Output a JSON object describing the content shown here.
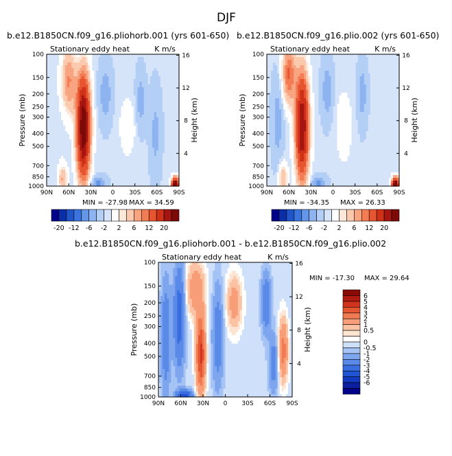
{
  "figure_title": "DJF",
  "colors": {
    "panel1_scale": [
      "#00008b",
      "#0a2ea8",
      "#1f55c8",
      "#3a74dc",
      "#6496e8",
      "#8db3f0",
      "#b4cff6",
      "#d6e4fa",
      "#ffffff",
      "#fde7d8",
      "#fbc9ae",
      "#f8a480",
      "#f27d55",
      "#e6552f",
      "#cf3018",
      "#a51512",
      "#7b0a08"
    ],
    "panel3_scale": [
      "#00008b",
      "#0b1fa0",
      "#1339c0",
      "#1f55d4",
      "#3a6ee0",
      "#5a8ae8",
      "#7ea6ee",
      "#a5c3f4",
      "#cfe0fa",
      "#ffffff",
      "#fde5d2",
      "#fbc3a4",
      "#f79e78",
      "#f07a52",
      "#e45632",
      "#d0341c",
      "#b01a10",
      "#8a0a06"
    ]
  },
  "chart_data": [
    {
      "type": "contour",
      "title": "b.e12.B1850CN.f09_g16.pliohorb.001 (yrs 601-650)",
      "subtitle_left": "Stationary eddy heat",
      "subtitle_right": "K m/s",
      "xlabel": "",
      "ylabel": "Pressure (mb)",
      "ylabel_right": "Height (km)",
      "x_ticks": [
        "90N",
        "60N",
        "30N",
        "0",
        "30S",
        "60S",
        "90S"
      ],
      "y_ticks": [
        "100",
        "150",
        "200",
        "250",
        "300",
        "400",
        "500",
        "700",
        "850",
        "1000"
      ],
      "y_right_ticks": [
        "16",
        "12",
        "8",
        "4"
      ],
      "min_label": "MIN = -27.98",
      "max_label": "MAX = 34.59",
      "colorbar_labels": [
        "-20",
        "-12",
        "-6",
        "-2",
        "2",
        "6",
        "12",
        "20"
      ]
    },
    {
      "type": "contour",
      "title": "b.e12.B1850CN.f09_g16.plio.002 (yrs 601-650)",
      "subtitle_left": "Stationary eddy heat",
      "subtitle_right": "K m/s",
      "xlabel": "",
      "ylabel": "Pressure (mb)",
      "ylabel_right": "Height (km)",
      "x_ticks": [
        "90N",
        "60N",
        "30N",
        "0",
        "30S",
        "60S",
        "90S"
      ],
      "y_ticks": [
        "100",
        "150",
        "200",
        "250",
        "300",
        "400",
        "500",
        "700",
        "850",
        "1000"
      ],
      "y_right_ticks": [
        "16",
        "12",
        "8",
        "4"
      ],
      "min_label": "MIN = -34.35",
      "max_label": "MAX = 26.33",
      "colorbar_labels": [
        "-20",
        "-12",
        "-6",
        "-2",
        "2",
        "6",
        "12",
        "20"
      ]
    },
    {
      "type": "contour",
      "title": "b.e12.B1850CN.f09_g16.pliohorb.001 - b.e12.B1850CN.f09_g16.plio.002",
      "subtitle_left": "Stationary eddy heat",
      "subtitle_right": "K m/s",
      "xlabel": "",
      "ylabel": "Pressure (mb)",
      "ylabel_right": "Height (km)",
      "x_ticks": [
        "90N",
        "60N",
        "30N",
        "0",
        "30S",
        "60S",
        "90S"
      ],
      "y_ticks": [
        "100",
        "150",
        "200",
        "250",
        "300",
        "400",
        "500",
        "700",
        "850",
        "1000"
      ],
      "y_right_ticks": [
        "16",
        "12",
        "8",
        "4"
      ],
      "min_label": "MIN = -17.30",
      "max_label": "MAX = 29.64",
      "colorbar_labels": [
        "6",
        "5",
        "4",
        "3",
        "2",
        "1",
        "0.5",
        "0",
        "-0.5",
        "-1",
        "-2",
        "-3",
        "-4",
        "-5",
        "-6"
      ]
    }
  ]
}
